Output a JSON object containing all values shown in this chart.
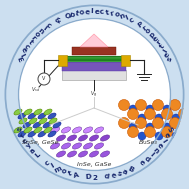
{
  "bg_color": "#ccdff0",
  "circle_bg": "#ccdff0",
  "outer_circle_color": "#a0b8d8",
  "inner_bg_color": "#ffffff",
  "top_text": "Electronic & Optoelectronic Properties",
  "bottom_text": "Selenide Based 2D Atomic Layers",
  "label_snse_gese": "SnSe, GeSe",
  "label_inse_gase": "InSe, GaSe",
  "label_bi2se3": "Bi₂Se₃",
  "text_color": "#1a2a6e",
  "fig_size": [
    1.89,
    1.89
  ],
  "dpi": 100
}
